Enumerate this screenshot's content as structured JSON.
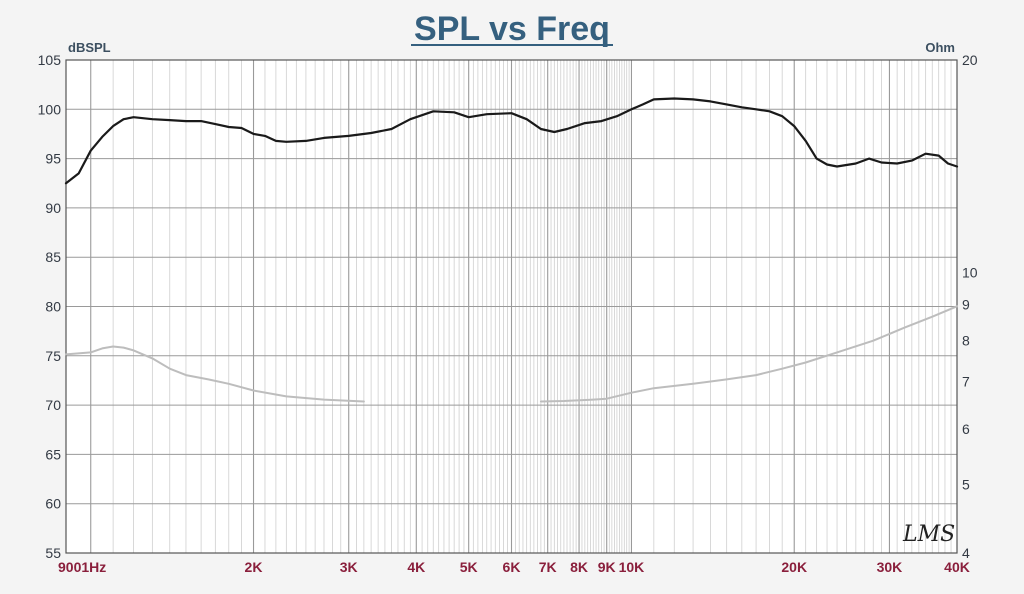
{
  "chart_data": {
    "type": "line",
    "title": "SPL vs Freq",
    "left_axis": {
      "unit": "dBSPL",
      "range": [
        55,
        105
      ],
      "ticks": [
        "105",
        "100",
        "95",
        "90",
        "85",
        "80",
        "75",
        "70",
        "65",
        "60",
        "55"
      ]
    },
    "right_axis": {
      "unit": "Ohm",
      "scale": "log",
      "range": [
        4,
        20
      ],
      "ticks": [
        "20",
        "10",
        "9",
        "8",
        "7",
        "6",
        "5",
        "4"
      ]
    },
    "x_axis": {
      "scale": "log",
      "unit": "Hz",
      "range": [
        900,
        40000
      ],
      "tick_labels": [
        {
          "label": "9001Hz",
          "value": 900
        },
        {
          "label": "2K",
          "value": 2000
        },
        {
          "label": "3K",
          "value": 3000
        },
        {
          "label": "4K",
          "value": 4000
        },
        {
          "label": "5K",
          "value": 5000
        },
        {
          "label": "6K",
          "value": 6000
        },
        {
          "label": "7K",
          "value": 7000
        },
        {
          "label": "8K",
          "value": 8000
        },
        {
          "label": "9K",
          "value": 9000
        },
        {
          "label": "10K",
          "value": 10000
        },
        {
          "label": "20K",
          "value": 20000
        },
        {
          "label": "30K",
          "value": 30000
        },
        {
          "label": "40K",
          "value": 40000
        }
      ]
    },
    "grid": true,
    "series": [
      {
        "axis": "left",
        "color": "#1a1a1a",
        "points": [
          [
            900,
            92.5
          ],
          [
            950,
            93.5
          ],
          [
            1000,
            95.8
          ],
          [
            1050,
            97.2
          ],
          [
            1100,
            98.3
          ],
          [
            1150,
            99.0
          ],
          [
            1200,
            99.2
          ],
          [
            1300,
            99.0
          ],
          [
            1400,
            98.9
          ],
          [
            1500,
            98.8
          ],
          [
            1600,
            98.8
          ],
          [
            1700,
            98.5
          ],
          [
            1800,
            98.2
          ],
          [
            1900,
            98.1
          ],
          [
            2000,
            97.5
          ],
          [
            2100,
            97.3
          ],
          [
            2200,
            96.8
          ],
          [
            2300,
            96.7
          ],
          [
            2500,
            96.8
          ],
          [
            2700,
            97.1
          ],
          [
            3000,
            97.3
          ],
          [
            3300,
            97.6
          ],
          [
            3600,
            98.0
          ],
          [
            3900,
            99.0
          ],
          [
            4300,
            99.8
          ],
          [
            4700,
            99.7
          ],
          [
            5000,
            99.2
          ],
          [
            5400,
            99.5
          ],
          [
            6000,
            99.6
          ],
          [
            6400,
            99.0
          ],
          [
            6800,
            98.0
          ],
          [
            7200,
            97.7
          ],
          [
            7600,
            98.0
          ],
          [
            8200,
            98.6
          ],
          [
            8800,
            98.8
          ],
          [
            9400,
            99.3
          ],
          [
            10000,
            100.0
          ],
          [
            10500,
            100.5
          ],
          [
            11000,
            101.0
          ],
          [
            12000,
            101.1
          ],
          [
            13000,
            101.0
          ],
          [
            14000,
            100.8
          ],
          [
            15000,
            100.5
          ],
          [
            16000,
            100.2
          ],
          [
            17000,
            100.0
          ],
          [
            18000,
            99.8
          ],
          [
            19000,
            99.3
          ],
          [
            20000,
            98.3
          ],
          [
            21000,
            96.8
          ],
          [
            22000,
            95.0
          ],
          [
            23000,
            94.4
          ],
          [
            24000,
            94.2
          ],
          [
            26000,
            94.5
          ],
          [
            27500,
            95.0
          ],
          [
            29000,
            94.6
          ],
          [
            31000,
            94.5
          ],
          [
            33000,
            94.8
          ],
          [
            35000,
            95.5
          ],
          [
            37000,
            95.3
          ],
          [
            38500,
            94.5
          ],
          [
            40000,
            94.2
          ]
        ]
      },
      {
        "axis": "right",
        "color": "#bdbdbd",
        "gap_after_index": 14,
        "points": [
          [
            900,
            7.65
          ],
          [
            1000,
            7.7
          ],
          [
            1050,
            7.8
          ],
          [
            1100,
            7.85
          ],
          [
            1150,
            7.82
          ],
          [
            1200,
            7.75
          ],
          [
            1300,
            7.55
          ],
          [
            1400,
            7.3
          ],
          [
            1500,
            7.15
          ],
          [
            1650,
            7.05
          ],
          [
            1800,
            6.95
          ],
          [
            2000,
            6.8
          ],
          [
            2300,
            6.67
          ],
          [
            2700,
            6.6
          ],
          [
            3200,
            6.56
          ],
          [
            6800,
            6.56
          ],
          [
            7500,
            6.57
          ],
          [
            8500,
            6.6
          ],
          [
            9000,
            6.62
          ],
          [
            10000,
            6.75
          ],
          [
            11000,
            6.85
          ],
          [
            13000,
            6.95
          ],
          [
            15000,
            7.05
          ],
          [
            17000,
            7.15
          ],
          [
            19000,
            7.3
          ],
          [
            21000,
            7.45
          ],
          [
            24000,
            7.7
          ],
          [
            28000,
            8.0
          ],
          [
            32000,
            8.35
          ],
          [
            36000,
            8.65
          ],
          [
            40000,
            8.95
          ]
        ]
      }
    ],
    "watermark": "LMS"
  }
}
